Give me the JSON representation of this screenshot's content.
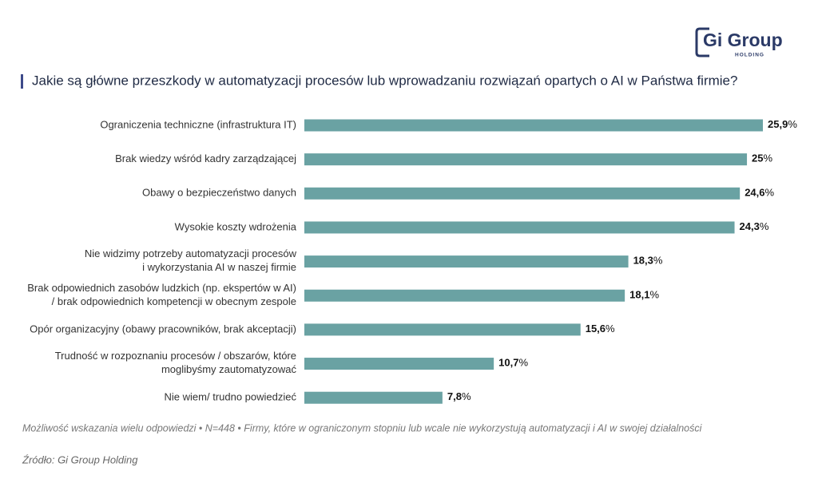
{
  "chart_data": {
    "type": "hbar",
    "title": "Jakie są główne przeszkody w automatyzacji procesów lub wprowadzaniu rozwiązań opartych o AI w Państwa firmie?",
    "categories": [
      "Ograniczenia techniczne (infrastruktura IT)",
      "Brak wiedzy wśród kadry zarządzającej",
      "Obawy o bezpieczeństwo danych",
      "Wysokie koszty wdrożenia",
      "Nie widzimy potrzeby automatyzacji procesów\ni wykorzystania AI w naszej firmie",
      "Brak odpowiednich zasobów ludzkich (np. ekspertów w AI)\n/ brak odpowiednich kompetencji w obecnym zespole",
      "Opór organizacyjny (obawy pracowników, brak akceptacji)",
      "Trudność w rozpoznaniu procesów / obszarów, które\nmoglibyśmy zautomatyzować",
      "Nie wiem/ trudno powiedzieć"
    ],
    "values": [
      25.9,
      25,
      24.6,
      24.3,
      18.3,
      18.1,
      15.6,
      10.7,
      7.8
    ],
    "value_labels": [
      "25,9%",
      "25%",
      "24,6%",
      "24,3%",
      "18,3%",
      "18,1%",
      "15,6%",
      "10,7%",
      "7,8%"
    ],
    "color": "#6aa2a3",
    "note": "Możliwość wskazania wielu odpowiedzi • N=448 • Firmy, które w ograniczonym stopniu lub wcale nie wykorzystują automatyzacji i AI w swojej działalności",
    "source": "Źródło: Gi Group Holding",
    "logo": {
      "text": "Gi Group",
      "subtext": "HOLDING"
    }
  }
}
